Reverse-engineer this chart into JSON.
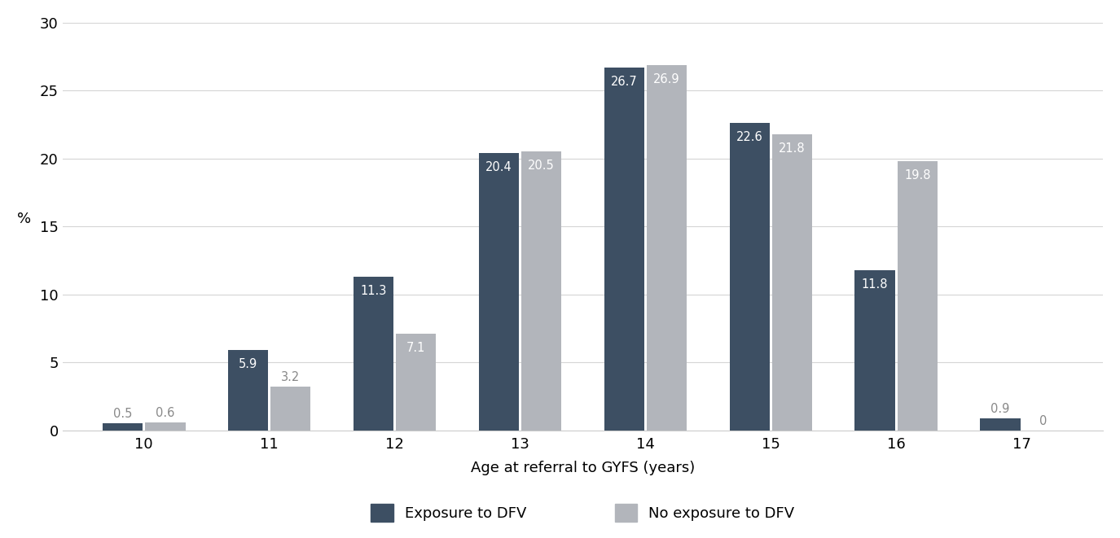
{
  "ages": [
    10,
    11,
    12,
    13,
    14,
    15,
    16,
    17
  ],
  "exposure_dfv": [
    0.5,
    5.9,
    11.3,
    20.4,
    26.7,
    22.6,
    11.8,
    0.9
  ],
  "no_exposure_dfv": [
    0.6,
    3.2,
    7.1,
    20.5,
    26.9,
    21.8,
    19.8,
    0
  ],
  "bar_color_exposure": "#3d4f63",
  "bar_color_no_exposure": "#b2b5bb",
  "xlabel": "Age at referral to GYFS (years)",
  "ylabel": "%",
  "ylim": [
    0,
    30
  ],
  "yticks": [
    0,
    5,
    10,
    15,
    20,
    25,
    30
  ],
  "legend_exposure": "Exposure to DFV",
  "legend_no_exposure": "No exposure to DFV",
  "bar_width": 0.32,
  "label_fontsize": 10.5,
  "tick_fontsize": 13,
  "legend_fontsize": 13,
  "xlabel_fontsize": 13,
  "ylabel_fontsize": 13,
  "background_color": "#ffffff",
  "grid_color": "#d5d5d5",
  "annotation_color_light": "#ffffff",
  "annotation_color_dark": "#888888"
}
